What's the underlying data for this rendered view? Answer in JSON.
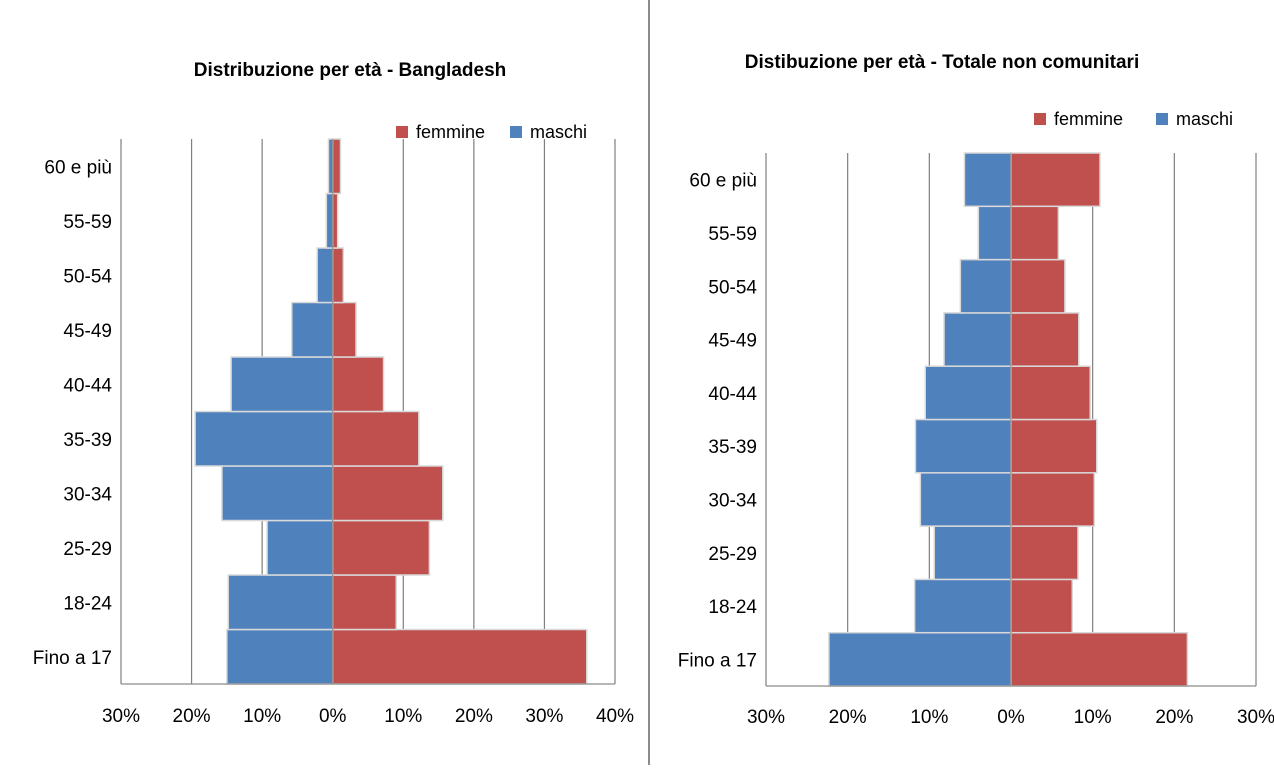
{
  "chart_data": [
    {
      "type": "bar",
      "orientation": "horizontal",
      "title": "Distribuzione per età - Bangladesh",
      "categories": [
        "Fino a 17",
        "18-24",
        "25-29",
        "30-34",
        "35-39",
        "40-44",
        "45-49",
        "50-54",
        "55-59",
        "60 e più"
      ],
      "series": [
        {
          "name": "femmine",
          "color": "#c0504d",
          "values": [
            36,
            9,
            13.7,
            15.6,
            12.2,
            7.2,
            3.3,
            1.5,
            0.7,
            1.1
          ]
        },
        {
          "name": "maschi",
          "color": "#4f81bd",
          "values": [
            15,
            14.8,
            9.3,
            15.7,
            19.5,
            14.4,
            5.8,
            2.2,
            0.9,
            0.6
          ]
        }
      ],
      "xlim": [
        -30,
        40
      ],
      "xticks": [
        -30,
        -20,
        -10,
        0,
        10,
        20,
        30,
        40
      ],
      "xtick_labels": [
        "30%",
        "20%",
        "10%",
        "0%",
        "10%",
        "20%",
        "30%",
        "40%"
      ],
      "grid": true,
      "legend": "top-right"
    },
    {
      "type": "bar",
      "orientation": "horizontal",
      "title": "Distibuzione per età - Totale non comunitari",
      "categories": [
        "Fino a 17",
        "18-24",
        "25-29",
        "30-34",
        "35-39",
        "40-44",
        "45-49",
        "50-54",
        "55-59",
        "60 e più"
      ],
      "series": [
        {
          "name": "femmine",
          "color": "#c0504d",
          "values": [
            21.6,
            7.5,
            8.2,
            10.2,
            10.5,
            9.7,
            8.3,
            6.6,
            5.8,
            10.9
          ]
        },
        {
          "name": "maschi",
          "color": "#4f81bd",
          "values": [
            22.3,
            11.8,
            9.4,
            11.1,
            11.7,
            10.5,
            8.2,
            6.2,
            4,
            5.7
          ]
        }
      ],
      "xlim": [
        -30,
        30
      ],
      "xticks": [
        -30,
        -20,
        -10,
        0,
        10,
        20,
        30
      ],
      "xtick_labels": [
        "30%",
        "20%",
        "10%",
        "0%",
        "10%",
        "20%",
        "30%"
      ],
      "grid": true,
      "legend": "top-right"
    }
  ]
}
